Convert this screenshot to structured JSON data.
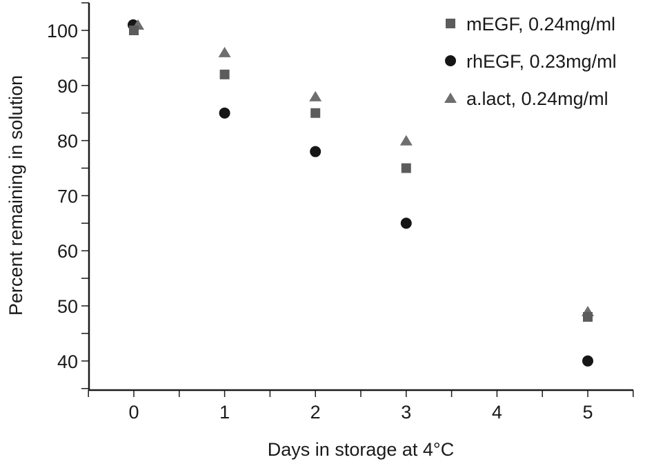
{
  "chart_data": {
    "type": "scatter",
    "title": "",
    "xlabel": "Days in storage at 4°C",
    "ylabel": "Percent remaining in solution",
    "xlim": [
      -0.5,
      5.5
    ],
    "ylim": [
      35,
      105
    ],
    "x_ticks": [
      0,
      1,
      2,
      3,
      4,
      5
    ],
    "y_ticks": [
      40,
      50,
      60,
      70,
      80,
      90,
      100
    ],
    "grid": false,
    "legend_position": "top-right",
    "series": [
      {
        "name": "mEGF, 0.24mg/ml",
        "marker": "square",
        "color": "#5c5c5c",
        "x": [
          0,
          1,
          2,
          3,
          5
        ],
        "y": [
          100,
          92,
          85,
          75,
          48
        ]
      },
      {
        "name": "rhEGF, 0.23mg/ml",
        "marker": "circle",
        "color": "#161616",
        "x": [
          0,
          1,
          2,
          3,
          5
        ],
        "y": [
          101,
          85,
          78,
          65,
          40
        ]
      },
      {
        "name": "a.lact, 0.24mg/ml",
        "marker": "triangle",
        "color": "#6e6e6e",
        "x": [
          0,
          1,
          2,
          3,
          5
        ],
        "y": [
          101,
          96,
          88,
          80,
          49
        ]
      }
    ]
  }
}
